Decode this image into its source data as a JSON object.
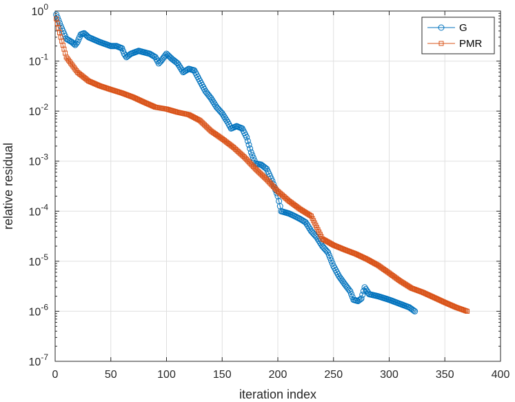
{
  "chart_data": {
    "type": "line",
    "title": "",
    "xlabel": "iteration index",
    "ylabel": "relative residual",
    "xlim": [
      0,
      400
    ],
    "ylim": [
      1e-07,
      1
    ],
    "yscale": "log",
    "xticks": [
      0,
      50,
      100,
      150,
      200,
      250,
      300,
      350,
      400
    ],
    "xtick_labels": [
      "0",
      "50",
      "100",
      "150",
      "200",
      "250",
      "300",
      "350",
      "400"
    ],
    "ytick_exponents": [
      0,
      -1,
      -2,
      -3,
      -4,
      -5,
      -6,
      -7
    ],
    "ytick_base": "10",
    "grid": true,
    "legend_position": "top-right",
    "series": [
      {
        "name": "G",
        "color": "#0072BD",
        "marker": "circle",
        "anchors": [
          [
            1,
            0.85
          ],
          [
            5,
            0.5
          ],
          [
            10,
            0.28
          ],
          [
            15,
            0.24
          ],
          [
            18,
            0.21
          ],
          [
            20,
            0.24
          ],
          [
            23,
            0.34
          ],
          [
            26,
            0.36
          ],
          [
            30,
            0.3
          ],
          [
            40,
            0.24
          ],
          [
            50,
            0.2
          ],
          [
            55,
            0.2
          ],
          [
            60,
            0.18
          ],
          [
            62,
            0.14
          ],
          [
            64,
            0.12
          ],
          [
            68,
            0.14
          ],
          [
            75,
            0.16
          ],
          [
            85,
            0.14
          ],
          [
            90,
            0.12
          ],
          [
            93,
            0.09
          ],
          [
            95,
            0.1
          ],
          [
            100,
            0.14
          ],
          [
            105,
            0.11
          ],
          [
            110,
            0.09
          ],
          [
            115,
            0.06
          ],
          [
            120,
            0.07
          ],
          [
            125,
            0.065
          ],
          [
            130,
            0.04
          ],
          [
            135,
            0.025
          ],
          [
            140,
            0.018
          ],
          [
            145,
            0.012
          ],
          [
            150,
            0.009
          ],
          [
            155,
            0.006
          ],
          [
            158,
            0.0045
          ],
          [
            163,
            0.005
          ],
          [
            168,
            0.0045
          ],
          [
            172,
            0.003
          ],
          [
            176,
            0.0015
          ],
          [
            180,
            0.0009
          ],
          [
            185,
            0.00085
          ],
          [
            190,
            0.0007
          ],
          [
            195,
            0.0004
          ],
          [
            200,
            0.0002
          ],
          [
            203,
            0.0001
          ],
          [
            210,
            9e-05
          ],
          [
            215,
            8e-05
          ],
          [
            220,
            7e-05
          ],
          [
            225,
            6e-05
          ],
          [
            230,
            4e-05
          ],
          [
            235,
            3e-05
          ],
          [
            240,
            2e-05
          ],
          [
            245,
            1.5e-05
          ],
          [
            250,
            8e-06
          ],
          [
            255,
            5e-06
          ],
          [
            260,
            3.5e-06
          ],
          [
            265,
            2.5e-06
          ],
          [
            268,
            1.7e-06
          ],
          [
            272,
            1.6e-06
          ],
          [
            275,
            1.8e-06
          ],
          [
            278,
            3e-06
          ],
          [
            282,
            2.2e-06
          ],
          [
            290,
            2e-06
          ],
          [
            300,
            1.7e-06
          ],
          [
            310,
            1.4e-06
          ],
          [
            318,
            1.2e-06
          ],
          [
            323,
            1e-06
          ]
        ]
      },
      {
        "name": "PMR",
        "color": "#D95319",
        "marker": "square",
        "anchors": [
          [
            1,
            0.7
          ],
          [
            5,
            0.3
          ],
          [
            10,
            0.12
          ],
          [
            20,
            0.06
          ],
          [
            30,
            0.04
          ],
          [
            40,
            0.032
          ],
          [
            50,
            0.027
          ],
          [
            60,
            0.023
          ],
          [
            70,
            0.019
          ],
          [
            80,
            0.015
          ],
          [
            90,
            0.012
          ],
          [
            100,
            0.011
          ],
          [
            110,
            0.0095
          ],
          [
            120,
            0.0085
          ],
          [
            130,
            0.0065
          ],
          [
            140,
            0.004
          ],
          [
            150,
            0.0028
          ],
          [
            160,
            0.0019
          ],
          [
            170,
            0.0012
          ],
          [
            180,
            0.0007
          ],
          [
            190,
            0.00043
          ],
          [
            200,
            0.00025
          ],
          [
            210,
            0.00016
          ],
          [
            220,
            0.00011
          ],
          [
            230,
            8e-05
          ],
          [
            240,
            2.8e-05
          ],
          [
            250,
            2.1e-05
          ],
          [
            260,
            1.7e-05
          ],
          [
            270,
            1.4e-05
          ],
          [
            280,
            1.1e-05
          ],
          [
            290,
            8.3e-06
          ],
          [
            300,
            5.8e-06
          ],
          [
            310,
            4e-06
          ],
          [
            320,
            2.9e-06
          ],
          [
            330,
            2.4e-06
          ],
          [
            340,
            1.9e-06
          ],
          [
            350,
            1.5e-06
          ],
          [
            360,
            1.2e-06
          ],
          [
            370,
            1e-06
          ]
        ]
      }
    ]
  }
}
